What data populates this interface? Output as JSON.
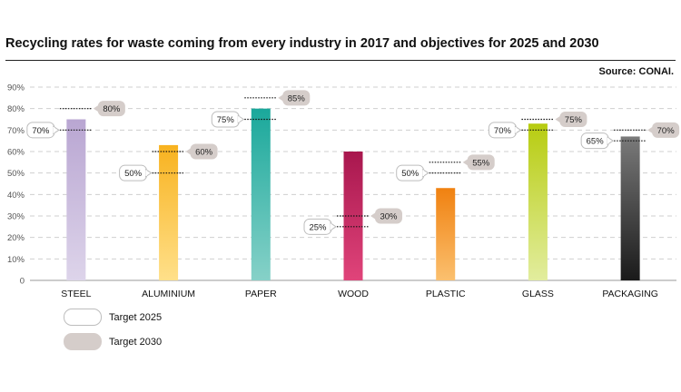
{
  "title": "Recycling rates for waste coming from every industry in 2017 and objectives for 2025 and 2030",
  "source": "Source: CONAI.",
  "legend": [
    {
      "label": "Target 2025"
    },
    {
      "label": "Target 2030"
    }
  ],
  "chart_data": {
    "type": "bar",
    "categories": [
      "STEEL",
      "ALUMINIUM",
      "PAPER",
      "WOOD",
      "PLASTIC",
      "GLASS",
      "PACKAGING"
    ],
    "values": [
      75,
      63,
      80,
      60,
      43,
      73,
      67
    ],
    "target_2025": [
      70,
      50,
      75,
      25,
      50,
      70,
      65
    ],
    "target_2030": [
      80,
      60,
      85,
      30,
      55,
      75,
      70
    ],
    "target_2025_labels": [
      "70%",
      "50%",
      "75%",
      "25%",
      "50%",
      "70%",
      "65%"
    ],
    "target_2030_labels": [
      "80%",
      "60%",
      "85%",
      "30%",
      "55%",
      "75%",
      "70%"
    ],
    "ylim": [
      0,
      90
    ],
    "yticks": [
      "0",
      "10%",
      "20%",
      "30%",
      "40%",
      "50%",
      "60%",
      "70%",
      "80%",
      "90%"
    ],
    "grid": true,
    "colors": [
      [
        "#ddd4ea",
        "#b9a6d2"
      ],
      [
        "#ffe08a",
        "#f8b21f"
      ],
      [
        "#86d1c8",
        "#1aa89b"
      ],
      [
        "#e0447a",
        "#a8174e"
      ],
      [
        "#fbc06f",
        "#f08110"
      ],
      [
        "#e2ed9e",
        "#b7cc10"
      ],
      [
        "#1a1a1a",
        "#7a7a7a"
      ]
    ]
  }
}
